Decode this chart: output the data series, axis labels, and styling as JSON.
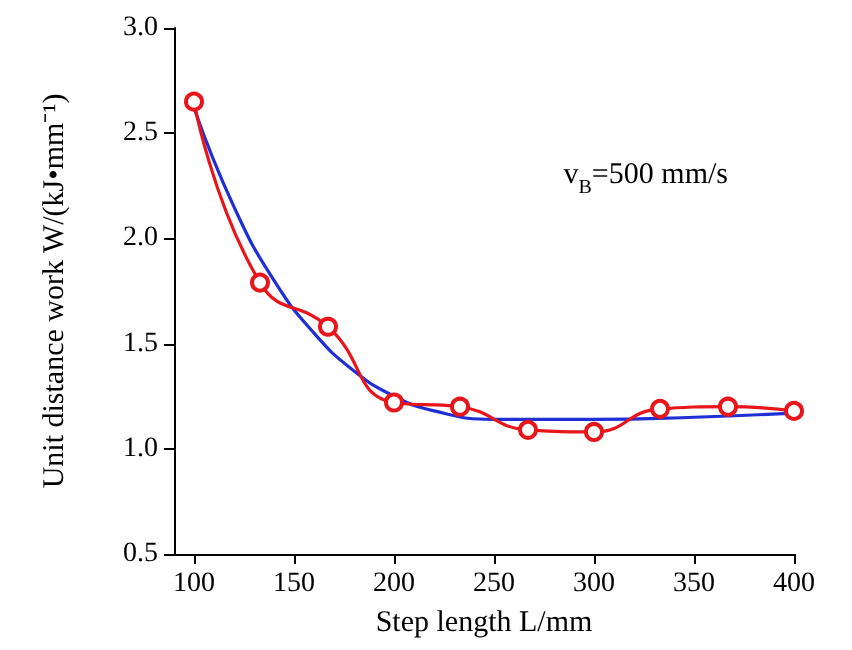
{
  "chart_data": {
    "type": "line",
    "xlabel": "Step length L/mm",
    "ylabel": "Unit distance work W/(kJ•mm⁻¹)",
    "annotations": [
      "v$_{B}$=500 mm/s"
    ],
    "series": [
      {
        "color": "#e8151b",
        "marker": "circle",
        "x": [
          100,
          133,
          167,
          200,
          233,
          267,
          300,
          333,
          367,
          400
        ],
        "values": [
          2.65,
          1.79,
          1.58,
          1.22,
          1.2,
          1.09,
          1.08,
          1.19,
          1.2,
          1.18
        ]
      },
      {
        "color": "#1f2fd6",
        "marker": "none",
        "x": [
          100,
          120,
          140,
          160,
          180,
          200,
          220,
          250,
          300,
          350,
          400
        ],
        "values": [
          2.62,
          2.15,
          1.8,
          1.55,
          1.37,
          1.25,
          1.18,
          1.14,
          1.14,
          1.15,
          1.17
        ]
      }
    ],
    "xlim": [
      90,
      400
    ],
    "xticks": [
      100,
      150,
      200,
      250,
      300,
      350,
      400
    ],
    "ylim": [
      0.5,
      3.0
    ],
    "yticks": [
      0.5,
      {
        "value": 1,
        "label": "1.0"
      },
      1.5,
      {
        "value": 2,
        "label": "2.0"
      },
      2.5,
      {
        "value": 3,
        "label": "3.0"
      }
    ],
    "grid": false,
    "line_style": "solid"
  }
}
